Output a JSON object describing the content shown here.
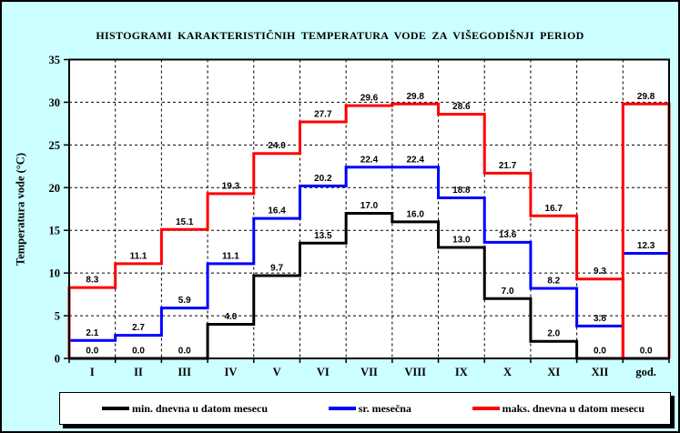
{
  "chart_data": {
    "type": "line",
    "subtype": "step-histogram",
    "title": "HISTOGRAMI KARAKTERISTIČNIH TEMPERATURA VODE ZA VIŠEGODIŠNJI PERIOD",
    "ylabel": "Temperatura vode (°C)",
    "xlabel": "",
    "categories": [
      "I",
      "II",
      "III",
      "IV",
      "V",
      "VI",
      "VII",
      "VIII",
      "IX",
      "X",
      "XI",
      "XII"
    ],
    "annual_category": "god.",
    "ylim": [
      0,
      35
    ],
    "ytick_step": 5,
    "grid": true,
    "legend_position": "bottom",
    "colors": {
      "background": "#ccffff",
      "plot_background": "#ffffff",
      "grid": "#000000",
      "text": "#000000"
    },
    "series": [
      {
        "name": "min. dnevna u datom mesecu",
        "color": "#000000",
        "values": [
          0.0,
          0.0,
          0.0,
          4.0,
          9.7,
          13.5,
          17.0,
          16.0,
          13.0,
          7.0,
          2.0,
          0.0
        ],
        "annual": 0.0,
        "annual_style": "line",
        "edge_verticals": false
      },
      {
        "name": "sr. mesečna",
        "color": "#0000ff",
        "values": [
          2.1,
          2.7,
          5.9,
          11.1,
          16.4,
          20.2,
          22.4,
          22.4,
          18.8,
          13.6,
          8.2,
          3.8
        ],
        "annual": 12.3,
        "annual_style": "line",
        "edge_verticals": false
      },
      {
        "name": "maks. dnevna u datom mesecu",
        "color": "#ff0000",
        "values": [
          8.3,
          11.1,
          15.1,
          19.3,
          24.0,
          27.7,
          29.6,
          29.8,
          28.6,
          21.7,
          16.7,
          9.3
        ],
        "annual": 29.8,
        "annual_style": "box",
        "edge_verticals": true
      }
    ]
  }
}
